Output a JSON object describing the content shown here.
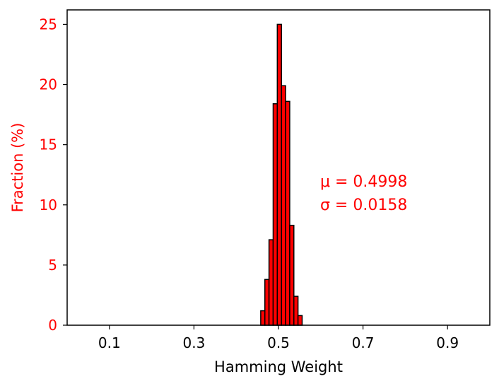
{
  "chart_data": {
    "type": "bar",
    "title": "",
    "xlabel": "Hamming Weight",
    "ylabel": "Fraction (%)",
    "xlim": [
      0.0,
      1.0
    ],
    "ylim": [
      0,
      26.2
    ],
    "x_ticks": [
      0.1,
      0.3,
      0.5,
      0.7,
      0.9
    ],
    "x_tick_labels": [
      "0.1",
      "0.3",
      "0.5",
      "0.7",
      "0.9"
    ],
    "y_ticks": [
      0,
      5,
      10,
      15,
      20,
      25
    ],
    "y_tick_labels": [
      "0",
      "5",
      "10",
      "15",
      "20",
      "25"
    ],
    "bin_width": 0.0098,
    "bins": [
      {
        "x0": 0.458,
        "value": 1.2
      },
      {
        "x0": 0.4678,
        "value": 3.8
      },
      {
        "x0": 0.4776,
        "value": 7.1
      },
      {
        "x0": 0.4874,
        "value": 18.4
      },
      {
        "x0": 0.4972,
        "value": 25.0
      },
      {
        "x0": 0.507,
        "value": 19.9
      },
      {
        "x0": 0.5168,
        "value": 18.6
      },
      {
        "x0": 0.5266,
        "value": 8.3
      },
      {
        "x0": 0.5364,
        "value": 2.4
      },
      {
        "x0": 0.5462,
        "value": 0.8
      }
    ],
    "bar_color": "#ff0000",
    "edge_color": "#000000",
    "label_color": "#ff0000",
    "grid": false,
    "annotations": [
      "μ = 0.4998",
      "σ = 0.0158"
    ],
    "annotation_position": "right-middle"
  }
}
